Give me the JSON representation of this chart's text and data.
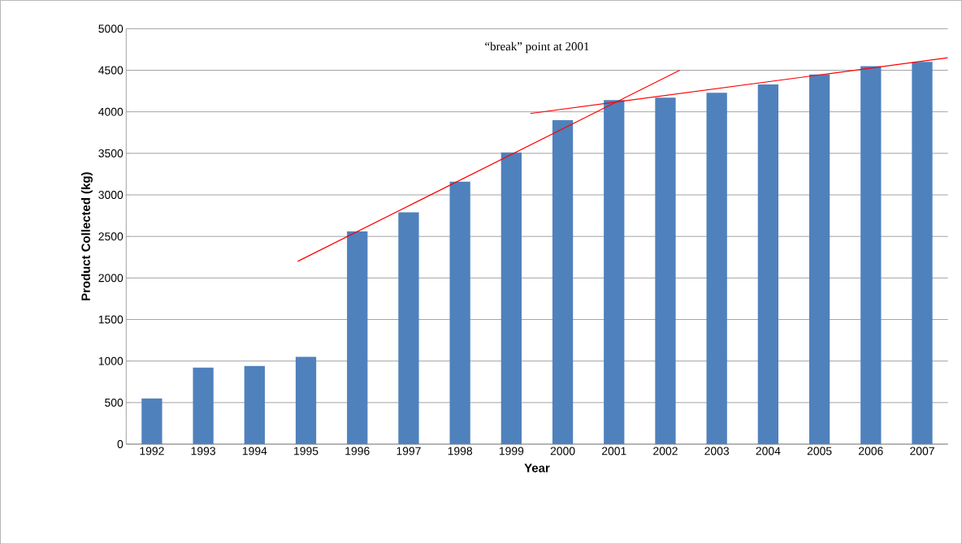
{
  "chart_data": {
    "type": "bar",
    "xlabel": "Year",
    "ylabel": "Product Collected (kg)",
    "x": [
      1992,
      1993,
      1994,
      1995,
      1996,
      1997,
      1998,
      1999,
      2000,
      2001,
      2002,
      2003,
      2004,
      2005,
      2006,
      2007
    ],
    "xlim": [
      1991.5,
      2007.5
    ],
    "xticks": [
      1992,
      1993,
      1994,
      1995,
      1996,
      1997,
      1998,
      1999,
      2000,
      2001,
      2002,
      2003,
      2004,
      2005,
      2006,
      2007
    ],
    "ylim": [
      0,
      5000
    ],
    "yticks": [
      0,
      500,
      1000,
      1500,
      2000,
      2500,
      3000,
      3500,
      4000,
      4500,
      5000
    ],
    "grid": "y",
    "annotations": [
      "“break” point at 2001"
    ],
    "series": [
      {
        "color": "#4f81bd",
        "values": [
          550,
          920,
          940,
          1050,
          2560,
          2790,
          3160,
          3510,
          3900,
          4140,
          4170,
          4230,
          4330,
          4450,
          4550,
          4600
        ]
      },
      {
        "type": "line",
        "color": "#ff0000",
        "marker": "none",
        "x": [
          1994.84,
          2002.28
        ],
        "values": [
          2200,
          4500
        ]
      },
      {
        "type": "line",
        "color": "#ff0000",
        "marker": "none",
        "x": [
          1999.37,
          2007.5
        ],
        "values": [
          3980,
          4650
        ]
      }
    ]
  }
}
